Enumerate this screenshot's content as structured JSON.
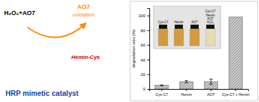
{
  "chart_data": {
    "type": "bar",
    "categories": [
      "Cys-C7",
      "Hemin",
      "AOT",
      "Cys-C7 + Hemin"
    ],
    "values": [
      5,
      10,
      10,
      98
    ],
    "errors": [
      0.5,
      1.5,
      3.5,
      0
    ],
    "color": "#cccccc",
    "ylabel": "degradation ratio (%)",
    "ylim": [
      0,
      110
    ],
    "yticks": [
      0,
      20,
      40,
      60,
      80,
      100
    ],
    "annotations": [
      {
        "text": "H₂O₂+AO7",
        "color": "#000000"
      },
      {
        "text": "AO7",
        "color": "#ff8800"
      },
      {
        "text": "oxidation",
        "color": "#ff8800"
      },
      {
        "text": "Hemin-Cys",
        "color": "#cc0000"
      },
      {
        "text": "HRP mimetic catalyst",
        "color": "#1144aa"
      },
      {
        "text": "Cys-C7"
      },
      {
        "text": "Hemin"
      },
      {
        "text": "AOT"
      },
      {
        "text": "Cys-C7\nHemin\nAOT\nH₂O₂"
      }
    ]
  }
}
